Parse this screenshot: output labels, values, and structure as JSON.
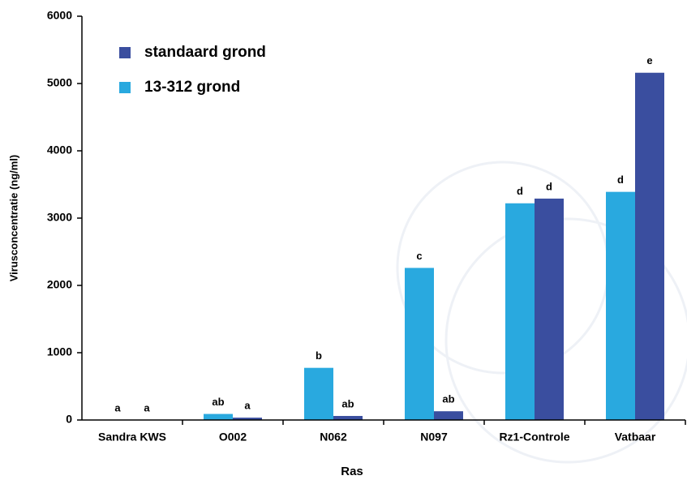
{
  "chart_data": {
    "type": "bar",
    "categories": [
      "Sandra KWS",
      "O002",
      "N062",
      "N097",
      "Rz1-Controle",
      "Vatbaar"
    ],
    "series": [
      {
        "name": "13-312 grond",
        "color": "#29a9df",
        "values": [
          0,
          90,
          775,
          2260,
          3220,
          3390
        ],
        "letters": [
          "a",
          "ab",
          "b",
          "c",
          "d",
          "d"
        ]
      },
      {
        "name": "standaard grond",
        "color": "#3a4e9f",
        "values": [
          0,
          35,
          60,
          130,
          3290,
          5160
        ],
        "letters": [
          "a",
          "a",
          "ab",
          "ab",
          "d",
          "e"
        ]
      }
    ],
    "legend_order": [
      1,
      0
    ],
    "xlabel": "Ras",
    "ylabel": "Virusconcentratie (ng/ml)",
    "ylim": [
      0,
      6000
    ],
    "yticks": [
      0,
      1000,
      2000,
      3000,
      4000,
      5000,
      6000
    ]
  }
}
